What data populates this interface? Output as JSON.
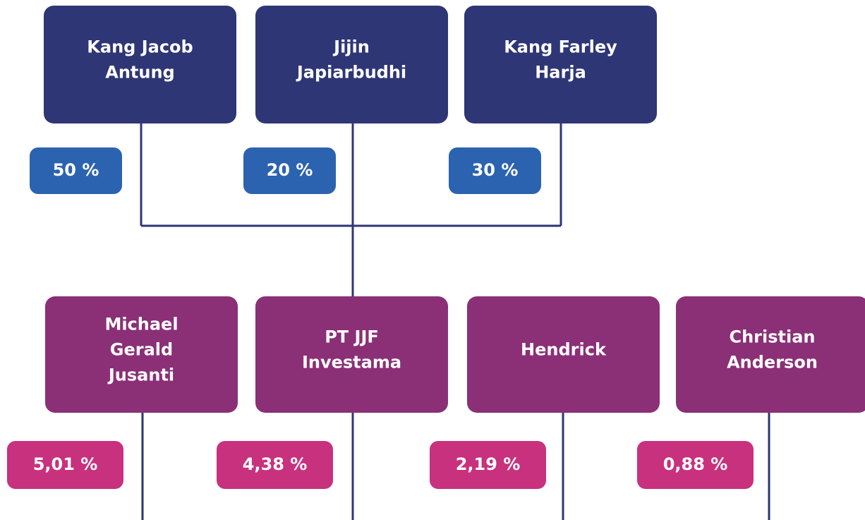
{
  "top_nodes": [
    {
      "lines": [
        "Kang Jacob",
        "Antung"
      ],
      "share": "50 %"
    },
    {
      "lines": [
        "Jijin",
        "Japiarbudhi"
      ],
      "share": "20 %"
    },
    {
      "lines": [
        "Kang Farley",
        "Harja"
      ],
      "share": "30 %"
    }
  ],
  "bottom_nodes": [
    {
      "lines": [
        "Michael",
        "Gerald",
        "Jusanti"
      ],
      "share": "5,01 %"
    },
    {
      "lines": [
        "PT JJF",
        "Investama"
      ],
      "share": "4,38 %"
    },
    {
      "lines": [
        "Hendrick"
      ],
      "share": "2,19 %"
    },
    {
      "lines": [
        "Christian",
        "Anderson"
      ],
      "share": "0,88 %"
    }
  ]
}
